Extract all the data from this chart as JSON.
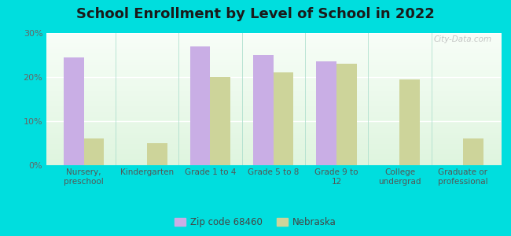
{
  "title": "School Enrollment by Level of School in 2022",
  "categories": [
    "Nursery,\npreschool",
    "Kindergarten",
    "Grade 1 to 4",
    "Grade 5 to 8",
    "Grade 9 to\n12",
    "College\nundergrad",
    "Graduate or\nprofessional"
  ],
  "zip_values": [
    24.5,
    0,
    27.0,
    25.0,
    23.5,
    0,
    0
  ],
  "ne_values": [
    6.0,
    5.0,
    20.0,
    21.0,
    23.0,
    19.5,
    6.0
  ],
  "zip_color": "#c9aee5",
  "ne_color": "#cdd49a",
  "background_outer": "#00dede",
  "background_inner_top": "#e8f5e9",
  "background_inner_bottom": "#f5fff5",
  "bar_width": 0.32,
  "ylim": [
    0,
    30
  ],
  "yticks": [
    0,
    10,
    20,
    30
  ],
  "ytick_labels": [
    "0%",
    "10%",
    "20%",
    "30%"
  ],
  "zip_label": "Zip code 68460",
  "ne_label": "Nebraska",
  "title_fontsize": 13,
  "watermark": "City-Data.com"
}
